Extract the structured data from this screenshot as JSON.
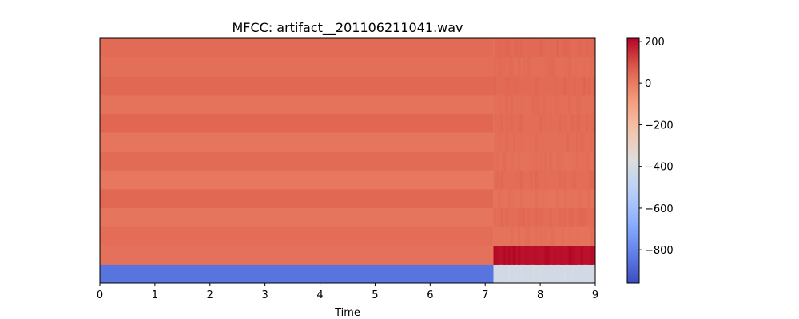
{
  "chart_data": {
    "type": "heatmap",
    "title": "MFCC: artifact__201106211041.wav",
    "xlabel": "Time",
    "ylabel": "",
    "xlim": [
      0,
      9
    ],
    "x_ticks": [
      0,
      1,
      2,
      3,
      4,
      5,
      6,
      7,
      8,
      9
    ],
    "n_rows": 13,
    "segment_boundary_time": 7.15,
    "row_values_first_segment": [
      -850,
      25,
      35,
      15,
      45,
      10,
      40,
      15,
      50,
      20,
      45,
      30,
      40
    ],
    "row_values_second_segment": [
      -420,
      195,
      20,
      35,
      20,
      35,
      25,
      30,
      35,
      30,
      40,
      30,
      40
    ],
    "colorbar": {
      "range": [
        -960,
        215
      ],
      "ticks": [
        200,
        0,
        -200,
        -400,
        -600,
        -800
      ],
      "tick_labels": [
        "200",
        "0",
        "−200",
        "−400",
        "−600",
        "−800"
      ],
      "colormap": "coolwarm"
    },
    "grid": false,
    "legend": "none"
  }
}
